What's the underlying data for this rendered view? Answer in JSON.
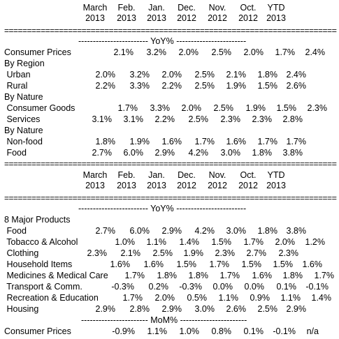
{
  "columns": [
    {
      "month": "March",
      "year": "2013"
    },
    {
      "month": "Feb.",
      "year": "2013"
    },
    {
      "month": "Jan.",
      "year": "2013"
    },
    {
      "month": "Dec.",
      "year": "2012"
    },
    {
      "month": "Nov.",
      "year": "2012"
    },
    {
      "month": "Oct.",
      "year": "2012"
    },
    {
      "month": "YTD",
      "year": "2013"
    }
  ],
  "rule_double": "==========================================================================================",
  "yoy_heading": "------------------------ YoY% ------------------------",
  "mom_heading": "----------------------- MoM% -----------------------",
  "section1_rows": [
    {
      "label": "Consumer Prices",
      "values": [
        "2.1%",
        "3.2%",
        "2.0%",
        "2.5%",
        "2.0%",
        "1.7%",
        "2.4%"
      ]
    },
    {
      "label": "By Region",
      "values": []
    },
    {
      "label": " Urban",
      "values": [
        "2.0%",
        "3.2%",
        "2.0%",
        "2.5%",
        "2.1%",
        "1.8%",
        "2.4%"
      ]
    },
    {
      "label": " Rural",
      "values": [
        "2.2%",
        "3.3%",
        "2.2%",
        "2.5%",
        "1.9%",
        "1.5%",
        "2.6%"
      ]
    },
    {
      "label": "By Nature",
      "values": []
    },
    {
      "label": " Consumer Goods",
      "values": [
        "1.7%",
        "3.3%",
        "2.0%",
        "2.5%",
        "1.9%",
        "1.5%",
        "2.3%"
      ]
    },
    {
      "label": " Services",
      "values": [
        "3.1%",
        "3.1%",
        "2.2%",
        "2.5%",
        "2.3%",
        "2.3%",
        "2.8%"
      ]
    },
    {
      "label": "By Nature",
      "values": []
    },
    {
      "label": " Non-food",
      "values": [
        "1.8%",
        "1.9%",
        "1.6%",
        "1.7%",
        "1.6%",
        "1.7%",
        "1.7%"
      ]
    },
    {
      "label": " Food",
      "values": [
        "2.7%",
        "6.0%",
        "2.9%",
        "4.2%",
        "3.0%",
        "1.8%",
        "3.8%"
      ]
    }
  ],
  "section2_title": "8 Major Products",
  "section2_rows": [
    {
      "label": " Food",
      "values": [
        "2.7%",
        "6.0%",
        "2.9%",
        "4.2%",
        "3.0%",
        "1.8%",
        "3.8%"
      ]
    },
    {
      "label": " Tobacco & Alcohol",
      "values": [
        "1.0%",
        "1.1%",
        "1.4%",
        "1.5%",
        "1.7%",
        "2.0%",
        "1.2%"
      ]
    },
    {
      "label": " Clothing",
      "values": [
        "2.3%",
        "2.1%",
        "2.5%",
        "1.9%",
        "2.3%",
        "2.7%",
        "2.3%"
      ]
    },
    {
      "label": " Household Items",
      "values": [
        "1.6%",
        "1.6%",
        "1.5%",
        "1.7%",
        "1.5%",
        "1.5%",
        "1.6%"
      ]
    },
    {
      "label": " Medicines & Medical Care",
      "values": [
        "1.7%",
        "1.8%",
        "1.8%",
        "1.7%",
        "1.6%",
        "1.8%",
        "1.7%"
      ]
    },
    {
      "label": " Transport & Comm.",
      "values": [
        "-0.3%",
        "0.2%",
        "-0.3%",
        "0.0%",
        "0.0%",
        "0.1%",
        "-0.1%"
      ]
    },
    {
      "label": " Recreation & Education",
      "values": [
        "1.7%",
        "2.0%",
        "0.5%",
        "1.1%",
        "0.9%",
        "1.1%",
        "1.4%"
      ]
    },
    {
      "label": " Housing",
      "values": [
        "2.9%",
        "2.8%",
        "2.9%",
        "3.0%",
        "2.6%",
        "2.5%",
        "2.9%"
      ]
    }
  ],
  "mom_row": {
    "label": "Consumer Prices",
    "values": [
      "-0.9%",
      "1.1%",
      "1.0%",
      "0.8%",
      "0.1%",
      "-0.1%",
      "n/a"
    ]
  }
}
